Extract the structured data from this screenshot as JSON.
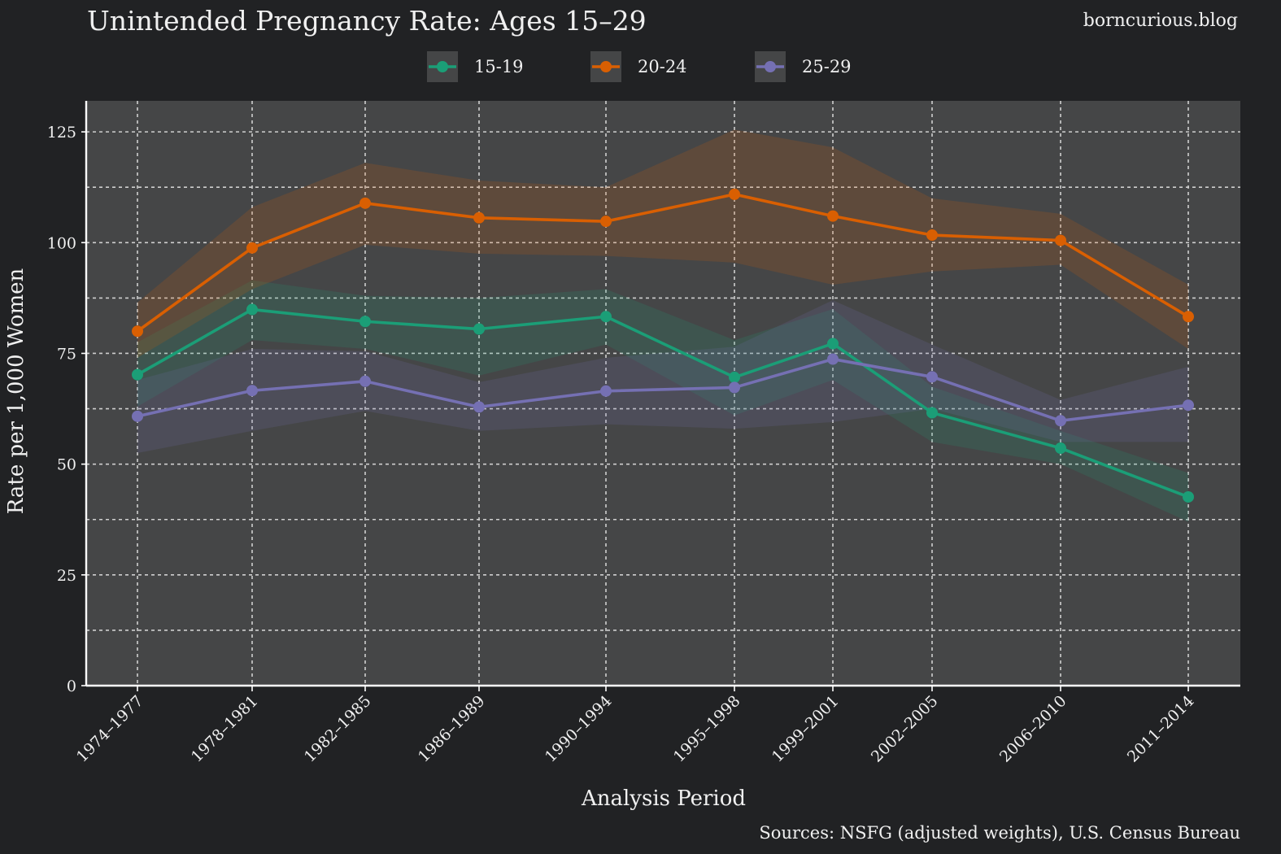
{
  "header": {
    "title": "Unintended Pregnancy Rate: Ages 15–29",
    "brand": "borncurious.blog"
  },
  "footer": {
    "caption": "Sources: NSFG (adjusted weights), U.S. Census Bureau"
  },
  "colors": {
    "background": "#212224",
    "panel": "#454647",
    "grid": "#cfcfcf",
    "text": "#f0f0f0"
  },
  "chart_data": {
    "type": "line",
    "title": "Unintended Pregnancy Rate: Ages 15–29",
    "xlabel": "Analysis Period",
    "ylabel": "Rate per 1,000 Women",
    "ylim": [
      0,
      132
    ],
    "yticks": [
      0,
      25,
      50,
      75,
      100,
      125
    ],
    "ygrid_minor": [
      12.5,
      37.5,
      62.5,
      87.5,
      112.5
    ],
    "grid": true,
    "legend_position": "top-center",
    "categories": [
      "1974–1977",
      "1978–1981",
      "1982–1985",
      "1986–1989",
      "1990–1994",
      "1995–1998",
      "1999–2001",
      "2002–2005",
      "2006–2010",
      "2011–2014"
    ],
    "series": [
      {
        "name": "15-19",
        "color": "#1b9e77",
        "values": [
          70.2,
          84.9,
          82.2,
          80.5,
          83.3,
          69.6,
          77.2,
          61.6,
          53.6,
          42.6
        ],
        "lower": [
          63.0,
          78.0,
          76.0,
          70.0,
          77.0,
          61.0,
          69.0,
          55.0,
          50.0,
          37.0
        ],
        "upper": [
          77.5,
          91.5,
          88.0,
          87.5,
          89.5,
          78.0,
          85.0,
          67.5,
          57.5,
          48.0
        ]
      },
      {
        "name": "20-24",
        "color": "#d95f02",
        "values": [
          80.0,
          98.8,
          108.9,
          105.6,
          104.8,
          110.9,
          106.0,
          101.7,
          100.5,
          83.3
        ],
        "lower": [
          74.0,
          89.5,
          99.5,
          97.5,
          97.0,
          95.5,
          90.5,
          93.5,
          95.0,
          76.0
        ],
        "upper": [
          86.5,
          108.0,
          118.0,
          114.0,
          112.5,
          125.5,
          121.5,
          110.0,
          106.5,
          90.5
        ]
      },
      {
        "name": "25-29",
        "color": "#7570b3",
        "values": [
          60.8,
          66.6,
          68.7,
          62.9,
          66.5,
          67.3,
          73.7,
          69.7,
          59.8,
          63.3
        ],
        "lower": [
          52.5,
          57.5,
          62.0,
          57.5,
          59.0,
          58.0,
          59.5,
          62.5,
          55.0,
          55.0
        ],
        "upper": [
          69.0,
          76.0,
          75.5,
          68.5,
          74.0,
          76.5,
          87.0,
          77.0,
          64.5,
          72.0
        ]
      }
    ]
  }
}
